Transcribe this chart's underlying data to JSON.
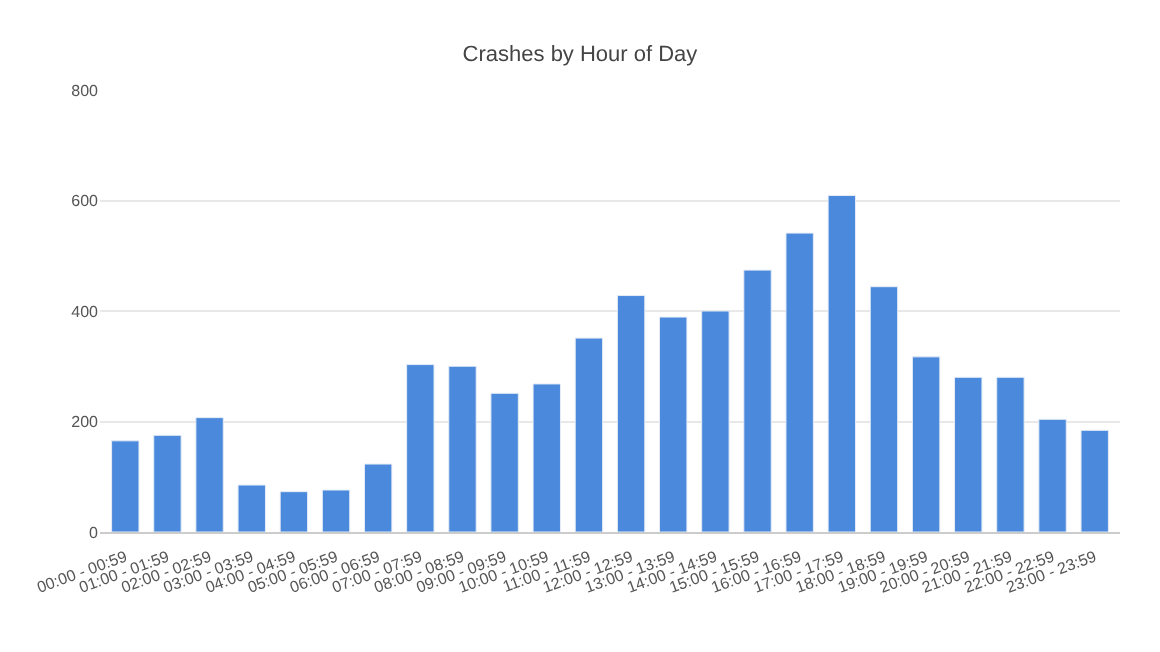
{
  "chart_data": {
    "type": "bar",
    "title": "Crashes by Hour of Day",
    "categories": [
      "00:00 - 00:59",
      "01:00 - 01:59",
      "02:00 - 02:59",
      "03:00 - 03:59",
      "04:00 - 04:59",
      "05:00 - 05:59",
      "06:00 - 06:59",
      "07:00 - 07:59",
      "08:00 - 08:59",
      "09:00 - 09:59",
      "10:00 - 10:59",
      "11:00 - 11:59",
      "12:00 - 12:59",
      "13:00 - 13:59",
      "14:00 - 14:59",
      "15:00 - 15:59",
      "16:00 - 16:59",
      "17:00 - 17:59",
      "18:00 - 18:59",
      "19:00 - 19:59",
      "20:00 - 20:59",
      "21:00 - 21:59",
      "22:00 - 22:59",
      "23:00 - 23:59"
    ],
    "values": [
      165,
      175,
      207,
      85,
      73,
      76,
      123,
      303,
      300,
      251,
      268,
      351,
      428,
      389,
      400,
      474,
      541,
      609,
      444,
      317,
      280,
      280,
      204,
      184
    ],
    "color": "#4a89dc",
    "ylim": [
      0,
      800
    ],
    "yticks": [
      0,
      200,
      400,
      600,
      800
    ],
    "grid": "y"
  }
}
